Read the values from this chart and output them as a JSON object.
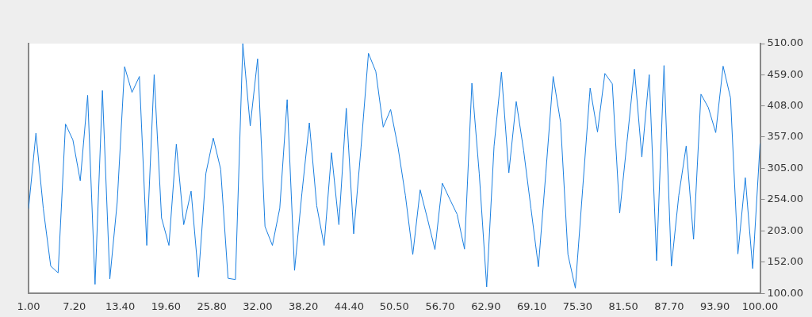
{
  "chart_data": {
    "type": "line",
    "x": [
      1,
      2,
      3,
      4,
      5,
      6,
      7,
      8,
      9,
      10,
      11,
      12,
      13,
      14,
      15,
      16,
      17,
      18,
      19,
      20,
      21,
      22,
      23,
      24,
      25,
      26,
      27,
      28,
      29,
      30,
      31,
      32,
      33,
      34,
      35,
      36,
      37,
      38,
      39,
      40,
      41,
      42,
      43,
      44,
      45,
      46,
      47,
      48,
      49,
      50,
      51,
      52,
      53,
      54,
      55,
      56,
      57,
      58,
      59,
      60,
      61,
      62,
      63,
      64,
      65,
      66,
      67,
      68,
      69,
      70,
      71,
      72,
      73,
      74,
      75,
      76,
      77,
      78,
      79,
      80,
      81,
      82,
      83,
      84,
      85,
      86,
      87,
      88,
      89,
      90,
      91,
      92,
      93,
      94,
      95,
      96,
      97,
      98,
      99,
      100
    ],
    "series": [
      {
        "color": "#1a7fe0",
        "values": [
          239,
          363,
          239,
          145,
          134,
          378,
          352,
          285,
          425,
          115,
          433,
          124,
          250,
          472,
          430,
          456,
          179,
          459,
          224,
          179,
          345,
          213,
          268,
          127,
          297,
          355,
          304,
          125,
          123,
          510,
          375,
          485,
          210,
          179,
          240,
          418,
          138,
          265,
          380,
          244,
          179,
          331,
          213,
          404,
          198,
          340,
          494,
          464,
          373,
          402,
          340,
          261,
          164,
          270,
          222,
          172,
          281,
          255,
          230,
          173,
          445,
          296,
          111,
          342,
          463,
          298,
          415,
          335,
          239,
          144,
          297,
          456,
          381,
          164,
          109,
          273,
          437,
          365,
          461,
          444,
          232,
          350,
          468,
          324,
          459,
          154,
          474,
          145,
          261,
          342,
          189,
          427,
          405,
          364,
          473,
          421,
          165,
          290,
          141,
          346
        ]
      }
    ],
    "xlim": [
      1,
      100
    ],
    "xticks": [
      {
        "value": 1,
        "label": "1.00"
      },
      {
        "value": 7.2,
        "label": "7.20"
      },
      {
        "value": 13.4,
        "label": "13.40"
      },
      {
        "value": 19.6,
        "label": "19.60"
      },
      {
        "value": 25.8,
        "label": "25.80"
      },
      {
        "value": 32,
        "label": "32.00"
      },
      {
        "value": 38.2,
        "label": "38.20"
      },
      {
        "value": 44.4,
        "label": "44.40"
      },
      {
        "value": 50.5,
        "label": "50.50"
      },
      {
        "value": 56.7,
        "label": "56.70"
      },
      {
        "value": 62.9,
        "label": "62.90"
      },
      {
        "value": 69.1,
        "label": "69.10"
      },
      {
        "value": 75.3,
        "label": "75.30"
      },
      {
        "value": 81.5,
        "label": "81.50"
      },
      {
        "value": 87.7,
        "label": "87.70"
      },
      {
        "value": 93.9,
        "label": "93.90"
      },
      {
        "value": 100,
        "label": "100.00"
      }
    ],
    "ylim": [
      100,
      510
    ],
    "yticks": [
      {
        "value": 100,
        "label": "100.00"
      },
      {
        "value": 152,
        "label": "152.00"
      },
      {
        "value": 203,
        "label": "203.00"
      },
      {
        "value": 254,
        "label": "254.00"
      },
      {
        "value": 305,
        "label": "305.00"
      },
      {
        "value": 357,
        "label": "357.00"
      },
      {
        "value": 408,
        "label": "408.00"
      },
      {
        "value": 459,
        "label": "459.00"
      },
      {
        "value": 510,
        "label": "510.00"
      }
    ],
    "grid": false,
    "legend": false,
    "marker": "none",
    "line_style": "solid"
  }
}
